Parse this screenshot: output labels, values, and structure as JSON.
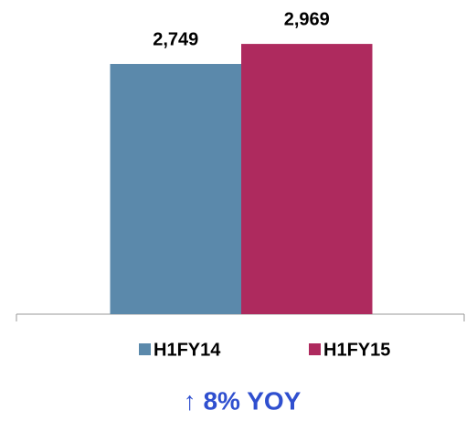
{
  "chart_data": {
    "type": "bar",
    "categories": [
      null
    ],
    "series": [
      {
        "name": "H1FY14",
        "color": "#5b89ab",
        "values": [
          2749
        ],
        "value_labels": [
          "2,749"
        ]
      },
      {
        "name": "H1FY15",
        "color": "#ae2a5e",
        "values": [
          2969
        ],
        "value_labels": [
          "2,969"
        ]
      }
    ],
    "ylim": [
      0,
      3000
    ],
    "annotation": "↑ 8% YOY"
  }
}
